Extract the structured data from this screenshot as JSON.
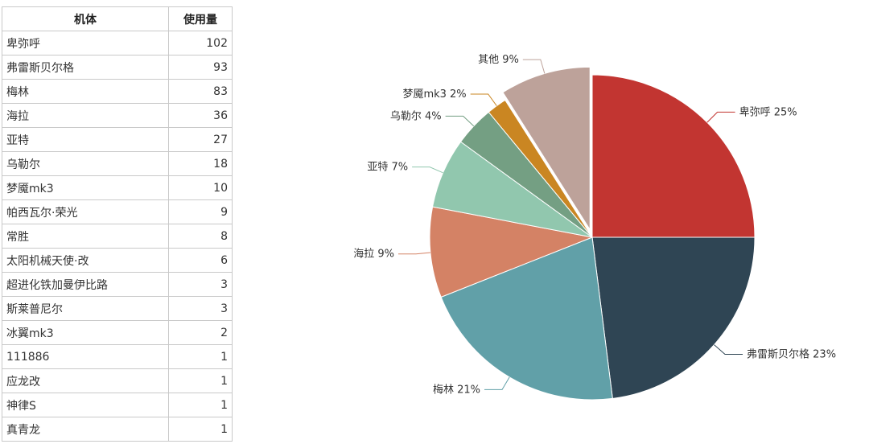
{
  "table": {
    "headers": [
      "机体",
      "使用量"
    ],
    "rows": [
      {
        "name": "卑弥呼",
        "count": "102"
      },
      {
        "name": "弗雷斯贝尔格",
        "count": "93"
      },
      {
        "name": "梅林",
        "count": "83"
      },
      {
        "name": "海拉",
        "count": "36"
      },
      {
        "name": "亚特",
        "count": "27"
      },
      {
        "name": "乌勒尔",
        "count": "18"
      },
      {
        "name": "梦魇mk3",
        "count": "10"
      },
      {
        "name": "帕西瓦尔·荣光",
        "count": "9"
      },
      {
        "name": "常胜",
        "count": "8"
      },
      {
        "name": "太阳机械天使·改",
        "count": "6"
      },
      {
        "name": "超进化铁加曼伊比路",
        "count": "3"
      },
      {
        "name": "斯莱普尼尔",
        "count": "3"
      },
      {
        "name": "冰翼mk3",
        "count": "2"
      },
      {
        "name": "111886",
        "count": "1"
      },
      {
        "name": "应龙改",
        "count": "1"
      },
      {
        "name": "神律S",
        "count": "1"
      },
      {
        "name": "真青龙",
        "count": "1"
      }
    ]
  },
  "chart_data": {
    "type": "pie",
    "start_angle_deg": 90,
    "direction": "clockwise",
    "slices": [
      {
        "label": "卑弥呼 25%",
        "value": 25,
        "color": "#c23531"
      },
      {
        "label": "弗雷斯贝尔格 23%",
        "value": 23,
        "color": "#2f4554"
      },
      {
        "label": "梅林 21%",
        "value": 21,
        "color": "#61a0a8"
      },
      {
        "label": "海拉 9%",
        "value": 9,
        "color": "#d48265"
      },
      {
        "label": "亚特 7%",
        "value": 7,
        "color": "#91c7ae"
      },
      {
        "label": "乌勒尔 4%",
        "value": 4,
        "color": "#749f83"
      },
      {
        "label": "梦魇mk3 2%",
        "value": 2,
        "color": "#ca8622"
      },
      {
        "label": "其他 9%",
        "value": 9,
        "color": "#bda29a",
        "exploded": true
      }
    ]
  }
}
